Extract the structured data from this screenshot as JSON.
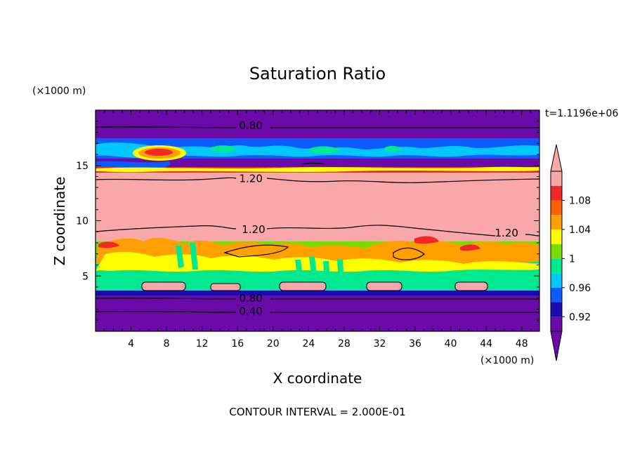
{
  "chart_data": {
    "type": "heatmap",
    "title": "Saturation Ratio",
    "xlabel": "X coordinate",
    "ylabel": "Z coordinate",
    "x_unit": "(×1000 m)",
    "y_unit": "(×1000 m)",
    "time_label": "t=1.1196e+06",
    "footer": "CONTOUR INTERVAL = 2.000E-01",
    "x_range": [
      0,
      50
    ],
    "y_range": [
      0,
      20
    ],
    "x_ticks": [
      4,
      8,
      12,
      16,
      20,
      24,
      28,
      32,
      36,
      40,
      44,
      48
    ],
    "y_ticks": [
      5,
      10,
      15
    ],
    "colorbar": {
      "labels": [
        "0.92",
        "0.96",
        "1",
        "1.04",
        "1.08"
      ],
      "levels": [
        0.9,
        0.92,
        0.94,
        0.96,
        0.98,
        1.0,
        1.02,
        1.04,
        1.06,
        1.08,
        1.1
      ],
      "colors": [
        "#6a0aa8",
        "#1a0ab0",
        "#0a5cff",
        "#00c8ff",
        "#00e890",
        "#78dc00",
        "#ffff00",
        "#ffa000",
        "#ff6000",
        "#f02828",
        "#f8a8a8"
      ],
      "extend": "both"
    },
    "contour_labels": [
      {
        "text": "0.80",
        "x": 17.5,
        "z": 18.6
      },
      {
        "text": "1.20",
        "x": 17.5,
        "z": 13.8
      },
      {
        "text": "1.20",
        "x": 17.8,
        "z": 9.2
      },
      {
        "text": "1.20",
        "x": 46.3,
        "z": 8.9
      },
      {
        "text": "0.80",
        "x": 17.5,
        "z": 3.0
      },
      {
        "text": "0.40",
        "x": 17.5,
        "z": 1.8
      }
    ],
    "bands": [
      {
        "z0": 0,
        "z1": 3.2,
        "value": 0.88
      },
      {
        "z0": 3.2,
        "z1": 3.6,
        "value": 0.93
      },
      {
        "z0": 3.6,
        "z1": 4.8,
        "value": 0.99
      },
      {
        "z0": 4.8,
        "z1": 6.6,
        "value": 0.99
      },
      {
        "z0": 6.6,
        "z1": 8.8,
        "value": 1.05
      },
      {
        "z0": 8.8,
        "z1": 13.6,
        "value": 1.2
      },
      {
        "z0": 13.6,
        "z1": 14.6,
        "value": 1.06
      },
      {
        "z0": 14.6,
        "z1": 15.4,
        "value": 0.9
      },
      {
        "z0": 15.4,
        "z1": 17.2,
        "value": 0.97
      },
      {
        "z0": 17.2,
        "z1": 20,
        "value": 0.85
      }
    ]
  }
}
